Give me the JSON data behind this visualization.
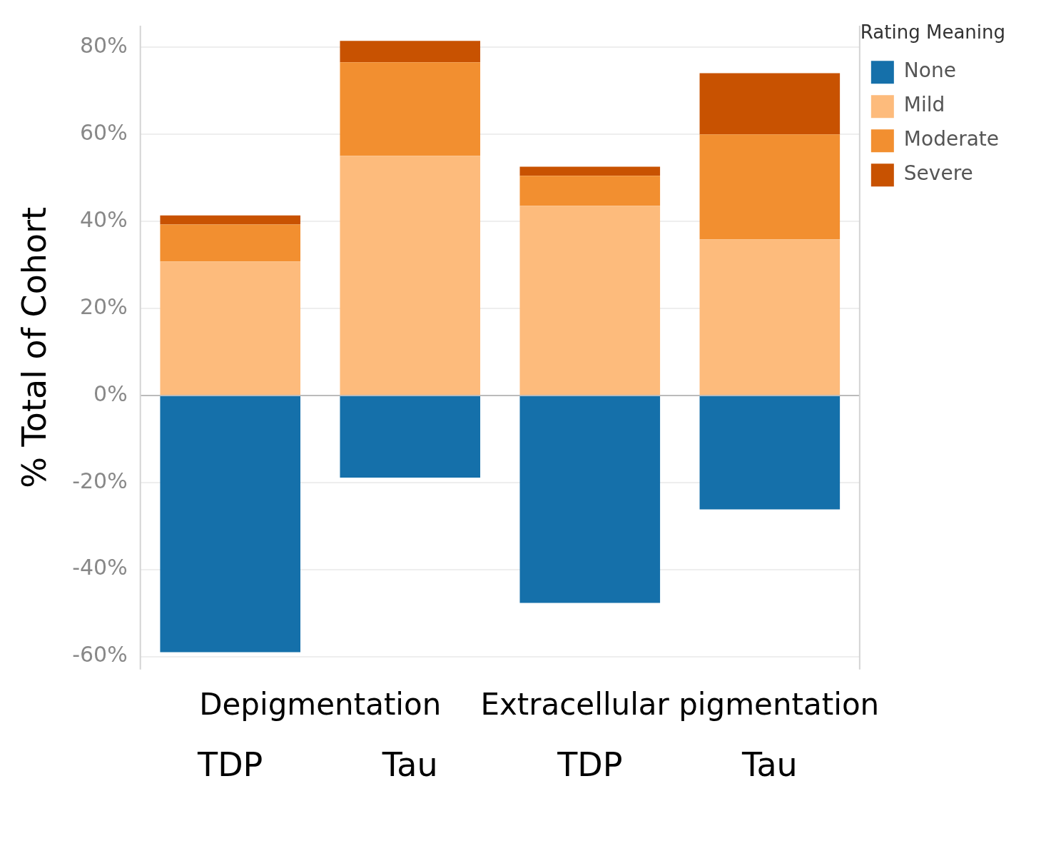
{
  "chart_data": {
    "type": "bar",
    "stacked": true,
    "ylabel": "% Total of Cohort",
    "legend_title": "Rating Meaning",
    "legend": "top right",
    "grid": "y",
    "categories": [
      "TDP",
      "Tau",
      "TDP",
      "Tau"
    ],
    "annotations": [
      "Depigmentation",
      "Extracellular pigmentation"
    ],
    "ylim": [
      -63,
      85
    ],
    "yticks": [
      {
        "value": -60,
        "label": "-60%"
      },
      {
        "value": -40,
        "label": "-40%"
      },
      {
        "value": -20,
        "label": "-20%"
      },
      {
        "value": 0,
        "label": "0%"
      },
      {
        "value": 20,
        "label": "20%"
      },
      {
        "value": 40,
        "label": "40%"
      },
      {
        "value": 60,
        "label": "60%"
      },
      {
        "value": 80,
        "label": "80%"
      }
    ],
    "series": [
      {
        "name": "None",
        "color": "#1570aa",
        "values": [
          -59,
          -18.9,
          -47.7,
          -26.2
        ]
      },
      {
        "name": "Mild",
        "color": "#fdbb7c",
        "values": [
          30.8,
          55.1,
          43.6,
          35.9
        ]
      },
      {
        "name": "Moderate",
        "color": "#f28f30",
        "values": [
          8.5,
          21.5,
          6.9,
          24.1
        ]
      },
      {
        "name": "Severe",
        "color": "#c85201",
        "values": [
          2.1,
          4.9,
          2.1,
          14.1
        ]
      }
    ]
  }
}
